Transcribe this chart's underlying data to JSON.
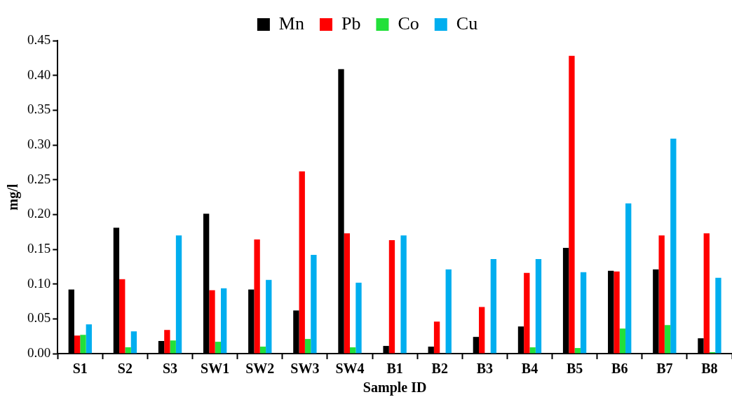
{
  "chart_data": {
    "type": "bar",
    "xlabel": "Sample ID",
    "ylabel": "mg/l",
    "categories": [
      "S1",
      "S2",
      "S3",
      "SW1",
      "SW2",
      "SW3",
      "SW4",
      "B1",
      "B2",
      "B3",
      "B4",
      "B5",
      "B6",
      "B7",
      "B8"
    ],
    "series": [
      {
        "name": "Mn",
        "color": "#000000",
        "values": [
          0.092,
          0.181,
          0.018,
          0.201,
          0.092,
          0.062,
          0.409,
          0.011,
          0.01,
          0.024,
          0.039,
          0.152,
          0.119,
          0.121,
          0.022
        ]
      },
      {
        "name": "Pb",
        "color": "#ff0000",
        "values": [
          0.026,
          0.107,
          0.034,
          0.091,
          0.164,
          0.262,
          0.173,
          0.163,
          0.046,
          0.067,
          0.116,
          0.428,
          0.118,
          0.17,
          0.173
        ]
      },
      {
        "name": "Co",
        "color": "#22e03a",
        "values": [
          0.027,
          0.009,
          0.019,
          0.017,
          0.01,
          0.021,
          0.009,
          0,
          0,
          0,
          0.009,
          0.008,
          0.036,
          0.041,
          0.002
        ]
      },
      {
        "name": "Cu",
        "color": "#00aeef",
        "values": [
          0.042,
          0.032,
          0.17,
          0.094,
          0.106,
          0.142,
          0.102,
          0.17,
          0.121,
          0.136,
          0.136,
          0.117,
          0.216,
          0.309,
          0.109
        ]
      }
    ],
    "ylim": [
      0,
      0.45
    ],
    "yticks": [
      {
        "value": 0,
        "label": "0.00"
      },
      {
        "value": 0.05,
        "label": "0.05"
      },
      {
        "value": 0.1,
        "label": "0.10"
      },
      {
        "value": 0.15,
        "label": "0.15"
      },
      {
        "value": 0.2,
        "label": "0.20"
      },
      {
        "value": 0.25,
        "label": "0.25"
      },
      {
        "value": 0.3,
        "label": "0.30"
      },
      {
        "value": 0.35,
        "label": "0.35"
      },
      {
        "value": 0.4,
        "label": "0.40"
      },
      {
        "value": 0.45,
        "label": "0.45"
      }
    ],
    "grid": false,
    "legend": "top"
  }
}
